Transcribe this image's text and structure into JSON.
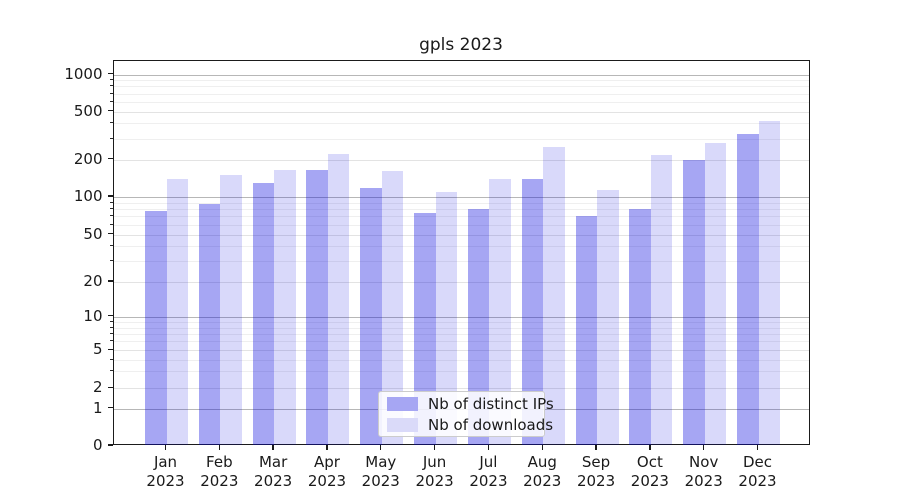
{
  "chart_data": {
    "type": "bar",
    "title": "gpls 2023",
    "categories": [
      "Jan 2023",
      "Feb 2023",
      "Mar 2023",
      "Apr 2023",
      "May 2023",
      "Jun 2023",
      "Jul 2023",
      "Aug 2023",
      "Sep 2023",
      "Oct 2023",
      "Nov 2023",
      "Dec 2023"
    ],
    "month_labels": [
      "Jan",
      "Feb",
      "Mar",
      "Apr",
      "May",
      "Jun",
      "Jul",
      "Aug",
      "Sep",
      "Oct",
      "Nov",
      "Dec"
    ],
    "year_label": "2023",
    "series": [
      {
        "name": "Nb of distinct IPs",
        "color": "rgba(0,0,220,0.35)",
        "color_hex": "#a6a6f3",
        "values": [
          77,
          88,
          129,
          166,
          119,
          74,
          80,
          141,
          70,
          80,
          200,
          328
        ]
      },
      {
        "name": "Nb of downloads",
        "color": "rgba(0,0,220,0.15)",
        "color_hex": "#dadaf9",
        "values": [
          139,
          150,
          166,
          223,
          163,
          109,
          141,
          253,
          113,
          220,
          277,
          415
        ]
      }
    ],
    "xlabel": "",
    "ylabel": "",
    "yscale": "symlog",
    "ylim": [
      0,
      1300
    ],
    "yticks_labeled": [
      0,
      1,
      2,
      5,
      10,
      20,
      50,
      100,
      200,
      500,
      1000
    ],
    "yticks_decade": [
      1,
      10,
      100,
      1000
    ],
    "yticks_minor": [
      3,
      4,
      6,
      7,
      8,
      9,
      30,
      40,
      60,
      70,
      80,
      90,
      300,
      400,
      600,
      700,
      800,
      900
    ],
    "grid": true,
    "legend_position": "inside lower-center"
  },
  "colors": {
    "grid_decade": "#b7b7b7",
    "grid_labeled": "#e3e3e3",
    "grid_minor": "#efefef",
    "spine": "#1b1b1b",
    "background": "#ffffff"
  }
}
